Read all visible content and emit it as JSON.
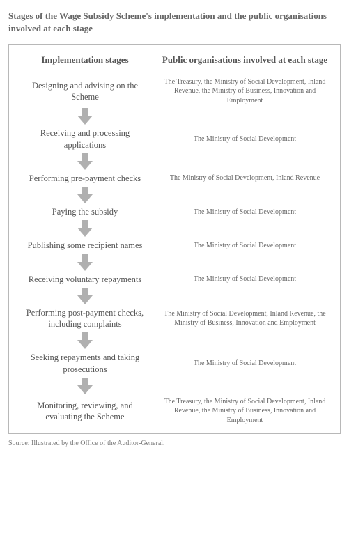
{
  "title": "Stages of the Wage Subsidy Scheme's implementation and the public organisations involved at each stage",
  "column_headers": {
    "left": "Implementation stages",
    "right": "Public organisations involved at each stage"
  },
  "stages": [
    {
      "stage": "Designing and advising on the Scheme",
      "orgs": "The Treasury, the Ministry of Social Development, Inland Revenue, the Ministry of Business, Innovation and Employment"
    },
    {
      "stage": "Receiving and processing applications",
      "orgs": "The Ministry of Social Development"
    },
    {
      "stage": "Performing pre-payment checks",
      "orgs": "The Ministry of Social Development, Inland Revenue"
    },
    {
      "stage": "Paying the subsidy",
      "orgs": "The Ministry of Social Development"
    },
    {
      "stage": "Publishing some recipient names",
      "orgs": "The Ministry of Social Development"
    },
    {
      "stage": "Receiving voluntary repayments",
      "orgs": "The Ministry of Social Development"
    },
    {
      "stage": "Performing post-payment checks, including complaints",
      "orgs": "The Ministry of Social Development, Inland Revenue, the Ministry of Business, Innovation and Employment"
    },
    {
      "stage": "Seeking repayments and taking prosecutions",
      "orgs": "The Ministry of Social Development"
    },
    {
      "stage": "Monitoring, reviewing, and evaluating the Scheme",
      "orgs": "The Treasury, the Ministry of Social Development, Inland Revenue, the Ministry of Business, Innovation and Employment"
    }
  ],
  "source_note": "Source: Illustrated by the Office of the Auditor-General.",
  "arrow": {
    "fill": "#b0b0b0",
    "width": 22,
    "height": 24
  },
  "colors": {
    "text_primary": "#555555",
    "text_secondary": "#666666",
    "border": "#b8b8b8",
    "background": "#ffffff"
  }
}
